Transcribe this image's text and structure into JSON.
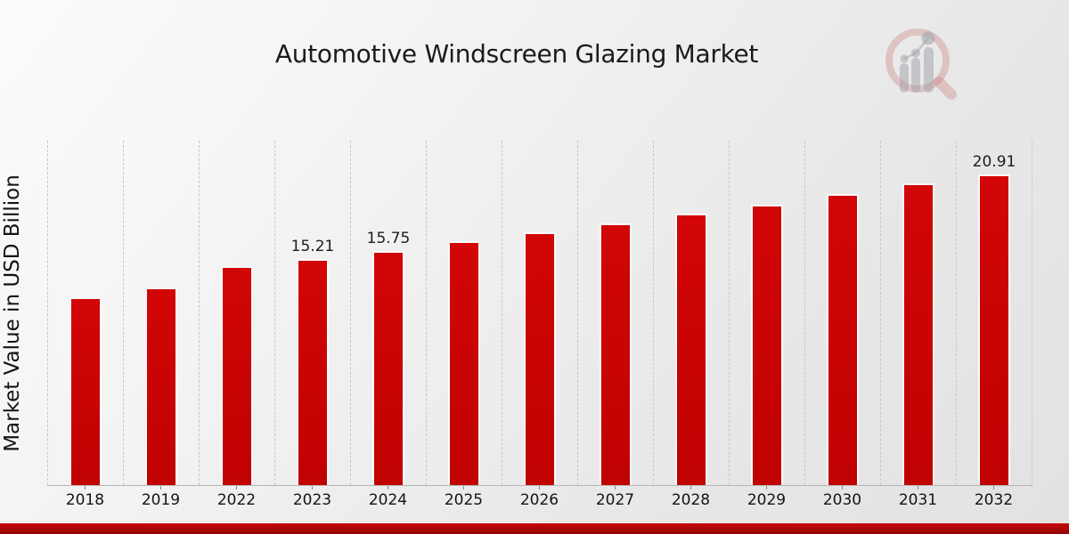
{
  "chart_data": {
    "type": "bar",
    "title": "Automotive Windscreen Glazing Market",
    "ylabel": "Market Value in USD Billion",
    "xlabel": "",
    "categories": [
      "2018",
      "2019",
      "2022",
      "2023",
      "2024",
      "2025",
      "2026",
      "2027",
      "2028",
      "2029",
      "2030",
      "2031",
      "2032"
    ],
    "values": [
      12.63,
      13.29,
      14.74,
      15.21,
      15.75,
      16.42,
      17.0,
      17.6,
      18.3,
      18.9,
      19.63,
      20.34,
      20.91
    ],
    "data_labels": {
      "2023": "15.21",
      "2024": "15.75",
      "2032": "20.91"
    },
    "ylim": [
      0,
      23.2
    ],
    "grid": "vertical-dashed",
    "legend": "none",
    "bar_color": "#cc0404",
    "bar_edge_color": "#fafafa",
    "accent_bar_color": "#b40808",
    "unit": "USD Billion"
  },
  "branding": {
    "logo_icon": "market-research-future-watermark"
  }
}
